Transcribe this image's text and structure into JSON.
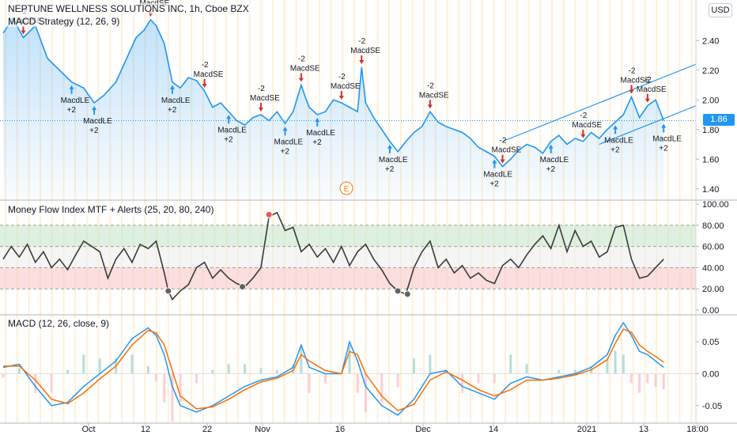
{
  "header": {
    "symbol_title": "NEPTUNE WELLNESS SOLUTIONS INC, 1h, Cboe BZX",
    "strategy_title": "MACD Strategy (12, 26, 9)",
    "currency_button": "USD",
    "last_price": "1.86",
    "earnings_marker": "E"
  },
  "colors": {
    "price_line": "#2196f3",
    "mfi_line": "#3a3a3a",
    "macd_line": "#2196f3",
    "signal_line": "#ff6d00",
    "buy_arrow": "#2196f3",
    "sell_arrow": "#d32f2f",
    "overbought_band": "#c8e6c9",
    "oversold_band": "#f8c8c8",
    "session_stripe": "#ffe9c8"
  },
  "chart_data": [
    {
      "type": "line",
      "pane": "price",
      "title": "NEPTUNE WELLNESS SOLUTIONS INC, 1h, Cboe BZX",
      "ylim": [
        1.34,
        2.62
      ],
      "y_ticks": [
        "2.40",
        "2.20",
        "2.00",
        "1.80",
        "1.60",
        "1.40"
      ],
      "y_tick_values": [
        2.4,
        2.2,
        2.0,
        1.8,
        1.6,
        1.4
      ],
      "x": [
        0,
        12,
        25,
        40,
        55,
        70,
        85,
        100,
        113,
        125,
        140,
        155,
        165,
        175,
        183,
        190,
        200,
        210,
        220,
        230,
        240,
        250,
        260,
        270,
        280,
        290,
        300,
        310,
        320,
        330,
        340,
        350,
        360,
        370,
        375,
        380,
        390,
        400,
        410,
        420,
        430,
        440,
        445,
        450,
        460,
        470,
        480,
        490,
        500,
        510,
        520,
        530,
        540,
        550,
        560,
        570,
        580,
        590,
        600,
        610,
        620,
        630,
        640,
        650,
        660,
        670,
        680,
        690,
        700,
        710,
        720,
        730,
        740,
        750,
        760,
        770,
        780,
        790,
        800,
        810,
        820
      ],
      "values": [
        2.45,
        2.55,
        2.42,
        2.5,
        2.28,
        2.2,
        2.12,
        2.08,
        1.98,
        2.03,
        2.12,
        2.3,
        2.42,
        2.47,
        2.54,
        2.5,
        2.38,
        2.12,
        2.08,
        2.15,
        2.13,
        2.06,
        1.95,
        1.98,
        1.92,
        1.86,
        1.83,
        1.88,
        1.9,
        1.86,
        1.92,
        1.84,
        1.92,
        2.1,
        2.02,
        1.95,
        1.9,
        1.92,
        2.0,
        1.98,
        1.95,
        1.92,
        2.22,
        1.98,
        1.88,
        1.8,
        1.72,
        1.65,
        1.72,
        1.78,
        1.82,
        1.92,
        1.85,
        1.82,
        1.8,
        1.78,
        1.74,
        1.68,
        1.65,
        1.62,
        1.55,
        1.6,
        1.66,
        1.7,
        1.68,
        1.64,
        1.72,
        1.76,
        1.7,
        1.74,
        1.72,
        1.78,
        1.74,
        1.8,
        1.85,
        1.9,
        2.02,
        1.88,
        1.96,
        2.0,
        1.86
      ],
      "last_value": 1.86,
      "trend_channel": {
        "upper": [
          [
            620,
            1.72
          ],
          [
            860,
            2.24
          ]
        ],
        "lower": [
          [
            740,
            1.7
          ],
          [
            860,
            1.96
          ]
        ]
      },
      "signal_labels": [
        "MacdLE",
        "MacdSE",
        "+2",
        "-2"
      ]
    },
    {
      "type": "line",
      "pane": "mfi",
      "title": "Money Flow Index MTF + Alerts (25, 20, 80, 240)",
      "ylim": [
        0,
        100
      ],
      "y_ticks": [
        "100.00",
        "80.00",
        "60.00",
        "40.00",
        "20.00",
        "0.00"
      ],
      "y_tick_values": [
        100,
        80,
        60,
        40,
        20,
        0
      ],
      "levels": {
        "overbought": 80,
        "upper": 60,
        "lower": 40,
        "oversold": 20
      },
      "x": [
        0,
        10,
        20,
        30,
        40,
        50,
        60,
        70,
        80,
        90,
        100,
        110,
        120,
        130,
        140,
        150,
        160,
        170,
        180,
        190,
        200,
        205,
        210,
        220,
        230,
        240,
        250,
        260,
        270,
        280,
        290,
        300,
        310,
        320,
        330,
        340,
        350,
        360,
        370,
        380,
        390,
        400,
        410,
        420,
        430,
        440,
        450,
        460,
        470,
        480,
        490,
        500,
        510,
        520,
        530,
        540,
        550,
        560,
        570,
        580,
        590,
        600,
        610,
        620,
        630,
        640,
        650,
        660,
        670,
        680,
        690,
        700,
        710,
        720,
        730,
        740,
        750,
        760,
        770,
        780,
        790,
        800,
        810,
        820
      ],
      "values": [
        48,
        60,
        50,
        62,
        45,
        55,
        40,
        48,
        38,
        52,
        65,
        60,
        55,
        30,
        48,
        58,
        45,
        62,
        58,
        65,
        35,
        18,
        10,
        18,
        24,
        40,
        45,
        30,
        38,
        30,
        25,
        22,
        30,
        40,
        88,
        92,
        75,
        78,
        55,
        62,
        50,
        58,
        45,
        60,
        42,
        55,
        62,
        48,
        38,
        25,
        18,
        15,
        40,
        55,
        65,
        40,
        48,
        35,
        42,
        30,
        35,
        28,
        25,
        42,
        48,
        40,
        52,
        62,
        70,
        58,
        80,
        55,
        75,
        60,
        65,
        50,
        55,
        78,
        80,
        48,
        30,
        32,
        40,
        48
      ],
      "markers": [
        {
          "x": 205,
          "y": 18
        },
        {
          "x": 297,
          "y": 22
        },
        {
          "x": 330,
          "y": 90
        },
        {
          "x": 490,
          "y": 18
        },
        {
          "x": 502,
          "y": 15
        }
      ]
    },
    {
      "type": "line",
      "pane": "macd",
      "title": "MACD (12, 26, close, 9)",
      "ylim": [
        -0.075,
        0.085
      ],
      "y_ticks": [
        "0.05",
        "0.00",
        "-0.05"
      ],
      "y_tick_values": [
        0.05,
        0.0,
        -0.05
      ],
      "x": [
        0,
        20,
        40,
        60,
        80,
        100,
        120,
        140,
        160,
        180,
        190,
        200,
        210,
        220,
        240,
        260,
        280,
        300,
        320,
        340,
        360,
        370,
        380,
        400,
        420,
        430,
        440,
        450,
        470,
        490,
        510,
        530,
        550,
        570,
        590,
        610,
        630,
        650,
        670,
        690,
        710,
        730,
        750,
        760,
        770,
        780,
        790,
        800,
        810,
        820
      ],
      "series": [
        {
          "name": "MACD",
          "values": [
            0.01,
            0.015,
            -0.02,
            -0.05,
            -0.045,
            -0.02,
            0.0,
            0.02,
            0.055,
            0.072,
            0.06,
            0.03,
            -0.02,
            -0.05,
            -0.06,
            -0.05,
            -0.035,
            -0.02,
            -0.01,
            -0.005,
            0.01,
            0.045,
            0.01,
            0.0,
            0.0,
            0.05,
            0.02,
            -0.02,
            -0.05,
            -0.065,
            -0.04,
            0.0,
            0.005,
            -0.02,
            -0.03,
            -0.04,
            -0.015,
            -0.005,
            -0.01,
            -0.005,
            0.0,
            0.01,
            0.03,
            0.06,
            0.08,
            0.06,
            0.035,
            0.03,
            0.02,
            0.01
          ]
        },
        {
          "name": "Signal",
          "values": [
            0.012,
            0.012,
            -0.01,
            -0.04,
            -0.047,
            -0.03,
            -0.008,
            0.012,
            0.045,
            0.068,
            0.064,
            0.045,
            0.005,
            -0.035,
            -0.055,
            -0.052,
            -0.04,
            -0.025,
            -0.013,
            -0.007,
            0.005,
            0.03,
            0.02,
            0.005,
            0.0,
            0.035,
            0.03,
            0.0,
            -0.035,
            -0.058,
            -0.048,
            -0.01,
            0.003,
            -0.01,
            -0.025,
            -0.035,
            -0.025,
            -0.01,
            -0.01,
            -0.007,
            -0.002,
            0.006,
            0.022,
            0.048,
            0.07,
            0.065,
            0.045,
            0.035,
            0.027,
            0.018
          ]
        }
      ]
    }
  ],
  "x_axis": {
    "labels": [
      "Oct",
      "12",
      "22",
      "Nov",
      "16",
      "Dec",
      "14",
      "2021",
      "13",
      "18:00"
    ],
    "positions": [
      112,
      184,
      262,
      332,
      430,
      535,
      624,
      742,
      814,
      882
    ]
  }
}
